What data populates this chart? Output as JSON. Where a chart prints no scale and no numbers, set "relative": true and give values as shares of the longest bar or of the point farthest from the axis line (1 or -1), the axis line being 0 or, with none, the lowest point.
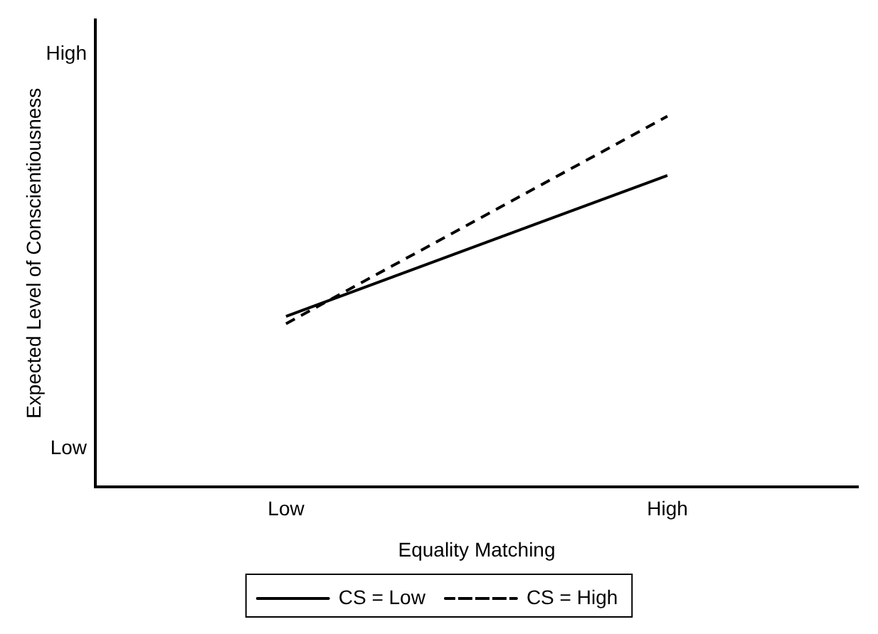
{
  "chart_data": {
    "type": "line",
    "xlabel": "Equality Matching",
    "ylabel": "Expected Level of Conscientiousness",
    "categories": [
      "Low",
      "High"
    ],
    "series": [
      {
        "name": "CS = Low",
        "color": "#000000",
        "values": [
          0.46,
          0.84
        ],
        "line_style": "solid"
      },
      {
        "name": "CS = High",
        "color": "#000000",
        "values": [
          0.44,
          1
        ],
        "line_style": "dashed"
      }
    ],
    "relative": true,
    "annotations": [
      "Low",
      "High"
    ],
    "grid": false,
    "legend": "bottom",
    "marker": "none"
  }
}
